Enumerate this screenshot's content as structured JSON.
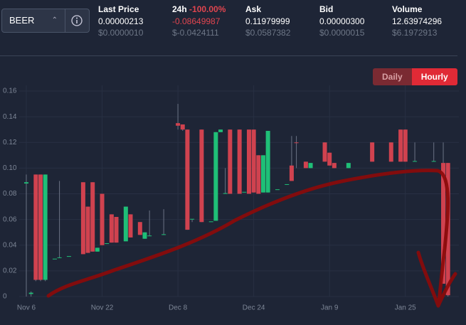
{
  "header": {
    "selector": "BEER",
    "stats": [
      {
        "label": "Last Price",
        "value": "0.00000213",
        "usd": "$0.0000010"
      },
      {
        "label": "24h",
        "change": "-100.00%",
        "value": "-0.08649987",
        "usd": "$-0.0424111"
      },
      {
        "label": "Ask",
        "value": "0.11979999",
        "usd": "$0.0587382"
      },
      {
        "label": "Bid",
        "value": "0.00000300",
        "usd": "$0.0000015"
      },
      {
        "label": "Volume",
        "value": "12.63974296",
        "usd": "$6.1972913"
      }
    ],
    "interval_buttons": [
      "Daily",
      "Hourly"
    ]
  },
  "chart_data": {
    "type": "candlestick",
    "x": [
      0,
      1,
      2,
      3,
      4,
      6,
      7,
      9,
      12,
      13,
      14,
      15,
      16,
      17,
      18,
      19,
      21,
      22,
      24,
      25,
      26,
      29,
      32,
      33,
      34,
      35,
      37,
      39,
      40,
      41,
      42,
      43,
      45,
      46,
      47,
      48,
      49,
      50,
      51,
      53,
      55,
      56,
      57,
      59,
      60,
      63,
      64,
      65,
      68,
      73,
      77,
      79,
      80,
      82,
      86,
      88,
      89
    ],
    "open": [
      0.088,
      0.002,
      0.095,
      0.095,
      0.013,
      0.029,
      0.03,
      0.031,
      0.089,
      0.07,
      0.089,
      0.035,
      0.08,
      0.041,
      0.064,
      0.062,
      0.043,
      0.064,
      0.058,
      0.045,
      0.047,
      0.048,
      0.135,
      0.134,
      0.13,
      0.06,
      0.13,
      0.058,
      0.059,
      0.128,
      0.08,
      0.13,
      0.13,
      0.081,
      0.13,
      0.13,
      0.11,
      0.081,
      0.081,
      0.083,
      0.087,
      0.102,
      0.12,
      0.105,
      0.1,
      0.12,
      0.112,
      0.104,
      0.1,
      0.12,
      0.12,
      0.13,
      0.13,
      0.105,
      0.105,
      0.104,
      0.104
    ],
    "high": [
      0.095,
      0.004,
      0.095,
      0.095,
      0.095,
      0.029,
      0.09,
      0.031,
      0.089,
      0.07,
      0.089,
      0.038,
      0.08,
      0.041,
      0.064,
      0.062,
      0.07,
      0.064,
      0.058,
      0.05,
      0.067,
      0.068,
      0.15,
      0.134,
      0.13,
      0.06,
      0.13,
      0.058,
      0.128,
      0.13,
      0.1,
      0.13,
      0.13,
      0.081,
      0.13,
      0.13,
      0.11,
      0.11,
      0.129,
      0.083,
      0.087,
      0.125,
      0.125,
      0.105,
      0.104,
      0.12,
      0.112,
      0.104,
      0.104,
      0.12,
      0.12,
      0.13,
      0.13,
      0.12,
      0.12,
      0.12,
      0.104
    ],
    "low": [
      0,
      0,
      0.012,
      0.012,
      0.012,
      0.029,
      0.03,
      0.031,
      0.033,
      0.034,
      0.035,
      0.035,
      0.04,
      0.041,
      0.042,
      0.042,
      0.043,
      0.046,
      0.048,
      0.045,
      0.047,
      0.048,
      0.13,
      0.129,
      0.052,
      0.058,
      0.058,
      0.058,
      0.059,
      0.128,
      0.08,
      0.08,
      0.08,
      0.081,
      0.08,
      0.081,
      0.08,
      0.081,
      0.081,
      0.083,
      0.087,
      0.09,
      0.1,
      0.1,
      0.1,
      0.105,
      0.102,
      0.1,
      0.1,
      0.105,
      0.105,
      0.105,
      0.105,
      0.105,
      0.105,
      0.01,
      0
    ],
    "close": [
      0.089,
      0.003,
      0.013,
      0.013,
      0.095,
      0.0295,
      0.0305,
      0.0315,
      0.033,
      0.034,
      0.035,
      0.038,
      0.04,
      0.0415,
      0.042,
      0.042,
      0.07,
      0.046,
      0.048,
      0.05,
      0.0475,
      0.0485,
      0.133,
      0.13,
      0.052,
      0.0605,
      0.058,
      0.0585,
      0.128,
      0.13,
      0.0805,
      0.08,
      0.08,
      0.0815,
      0.08,
      0.081,
      0.08,
      0.11,
      0.129,
      0.0835,
      0.0875,
      0.09,
      0.1195,
      0.1,
      0.104,
      0.105,
      0.102,
      0.1,
      0.104,
      0.105,
      0.105,
      0.105,
      0.105,
      0.1055,
      0.1055,
      0.01,
      0.001
    ],
    "up_color": "#1fbf77",
    "down_color": "#d0424f",
    "xlim": [
      -1.5,
      91.3
    ],
    "xticks": [
      {
        "value": 0,
        "label": "Nov 6"
      },
      {
        "value": 16,
        "label": "Nov 22"
      },
      {
        "value": 32,
        "label": "Dec 8"
      },
      {
        "value": 48,
        "label": "Dec 24"
      },
      {
        "value": 64,
        "label": "Jan 9"
      },
      {
        "value": 80,
        "label": "Jan 25"
      }
    ],
    "ylim": [
      0,
      0.16
    ],
    "yticks": [
      0,
      0.02,
      0.04,
      0.06,
      0.08,
      {
        "value": 0.1,
        "label": "0.10"
      },
      0.12,
      0.14,
      0.16
    ],
    "grid": true
  }
}
